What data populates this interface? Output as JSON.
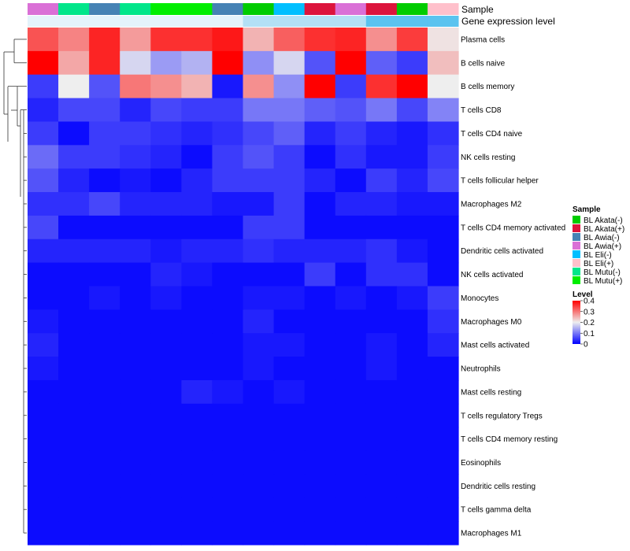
{
  "chart_data": {
    "type": "heatmap",
    "title": "",
    "annotation_labels": {
      "sample": "Sample",
      "gene_expression": "Gene expression level"
    },
    "column_samples": [
      "BL Awia(+)",
      "BL Mutu(-)",
      "BL Awia(-)",
      "BL Mutu(-)",
      "BL Mutu(+)",
      "BL Mutu(+)",
      "BL Awia(-)",
      "BL Akata(-)",
      "BL Eli(-)",
      "BL Akata(+)",
      "BL Awia(+)",
      "BL Akata(+)",
      "BL Akata(-)",
      "BL Eli(+)"
    ],
    "column_gene_expression": [
      0.3,
      0.3,
      0.3,
      0.3,
      0.3,
      0.3,
      0.3,
      0.5,
      0.5,
      0.5,
      0.5,
      0.8,
      0.8,
      0.8
    ],
    "rows": [
      "Plasma cells",
      "B cells naive",
      "B cells memory",
      "T cells CD8",
      "T cells CD4 naive",
      "NK cells resting",
      "T cells follicular helper",
      "Macrophages M2",
      "T cells CD4 memory activated",
      "Dendritic cells activated",
      "NK cells activated",
      "Monocytes",
      "Macrophages M0",
      "Mast cells activated",
      "Neutrophils",
      "Mast cells resting",
      "T cells regulatory  Tregs",
      "T cells CD4 memory resting",
      "Eosinophils",
      "Dendritic cells resting",
      "T cells gamma delta",
      "Macrophages M1"
    ],
    "values": [
      [
        0.33,
        0.29,
        0.37,
        0.27,
        0.36,
        0.36,
        0.38,
        0.25,
        0.32,
        0.36,
        0.37,
        0.28,
        0.35,
        0.21
      ],
      [
        0.42,
        0.26,
        0.37,
        0.18,
        0.13,
        0.15,
        0.42,
        0.12,
        0.18,
        0.07,
        0.42,
        0.08,
        0.05,
        0.24
      ],
      [
        0.05,
        0.2,
        0.07,
        0.3,
        0.28,
        0.25,
        0.02,
        0.28,
        0.12,
        0.42,
        0.05,
        0.36,
        0.42,
        0.2
      ],
      [
        0.03,
        0.06,
        0.06,
        0.03,
        0.06,
        0.05,
        0.05,
        0.1,
        0.1,
        0.08,
        0.07,
        0.1,
        0.06,
        0.11
      ],
      [
        0.05,
        0.01,
        0.05,
        0.05,
        0.04,
        0.03,
        0.04,
        0.06,
        0.08,
        0.03,
        0.05,
        0.03,
        0.02,
        0.04
      ],
      [
        0.09,
        0.05,
        0.05,
        0.04,
        0.03,
        0.01,
        0.05,
        0.07,
        0.05,
        0.01,
        0.04,
        0.02,
        0.02,
        0.05
      ],
      [
        0.07,
        0.03,
        0.01,
        0.02,
        0.01,
        0.03,
        0.05,
        0.05,
        0.05,
        0.03,
        0.01,
        0.05,
        0.03,
        0.06
      ],
      [
        0.04,
        0.04,
        0.06,
        0.03,
        0.03,
        0.03,
        0.02,
        0.02,
        0.05,
        0.01,
        0.03,
        0.03,
        0.02,
        0.02
      ],
      [
        0.06,
        0.01,
        0.01,
        0.01,
        0.01,
        0.01,
        0.01,
        0.05,
        0.05,
        0.01,
        0.01,
        0.01,
        0.01,
        0.01
      ],
      [
        0.03,
        0.03,
        0.03,
        0.03,
        0.02,
        0.03,
        0.03,
        0.04,
        0.03,
        0.03,
        0.03,
        0.04,
        0.02,
        0.01
      ],
      [
        0.01,
        0.01,
        0.01,
        0.01,
        0.03,
        0.02,
        0.01,
        0.01,
        0.01,
        0.05,
        0.01,
        0.04,
        0.04,
        0.01
      ],
      [
        0.01,
        0.01,
        0.02,
        0.01,
        0.02,
        0.01,
        0.01,
        0.02,
        0.02,
        0.01,
        0.02,
        0.01,
        0.02,
        0.05
      ],
      [
        0.02,
        0.01,
        0.01,
        0.01,
        0.01,
        0.01,
        0.01,
        0.03,
        0.01,
        0.01,
        0.01,
        0.01,
        0.01,
        0.04
      ],
      [
        0.03,
        0.01,
        0.01,
        0.01,
        0.01,
        0.01,
        0.01,
        0.02,
        0.02,
        0.01,
        0.01,
        0.02,
        0.01,
        0.03
      ],
      [
        0.02,
        0.01,
        0.01,
        0.01,
        0.01,
        0.01,
        0.01,
        0.02,
        0.01,
        0.01,
        0.01,
        0.02,
        0.01,
        0.01
      ],
      [
        0.01,
        0.01,
        0.01,
        0.01,
        0.01,
        0.03,
        0.02,
        0.01,
        0.02,
        0.01,
        0.01,
        0.01,
        0.01,
        0.01
      ],
      [
        0.01,
        0.01,
        0.01,
        0.01,
        0.01,
        0.01,
        0.01,
        0.01,
        0.01,
        0.01,
        0.01,
        0.01,
        0.01,
        0.01
      ],
      [
        0.01,
        0.01,
        0.01,
        0.01,
        0.01,
        0.01,
        0.01,
        0.01,
        0.01,
        0.01,
        0.01,
        0.01,
        0.01,
        0.01
      ],
      [
        0.01,
        0.01,
        0.01,
        0.01,
        0.01,
        0.01,
        0.01,
        0.01,
        0.01,
        0.01,
        0.01,
        0.01,
        0.01,
        0.01
      ],
      [
        0.01,
        0.01,
        0.01,
        0.01,
        0.01,
        0.01,
        0.01,
        0.01,
        0.01,
        0.01,
        0.01,
        0.01,
        0.01,
        0.01
      ],
      [
        0.01,
        0.01,
        0.01,
        0.01,
        0.01,
        0.01,
        0.01,
        0.01,
        0.01,
        0.01,
        0.01,
        0.01,
        0.01,
        0.01
      ],
      [
        0.01,
        0.01,
        0.01,
        0.01,
        0.01,
        0.01,
        0.01,
        0.01,
        0.01,
        0.01,
        0.01,
        0.01,
        0.01,
        0.01
      ]
    ],
    "color_scale": {
      "title": "Level",
      "min": 0,
      "max": 0.4,
      "ticks": [
        0.4,
        0.3,
        0.2,
        0.1,
        0
      ],
      "tick_labels": [
        "0.4",
        "0.3",
        "0.2",
        "0.1",
        "0"
      ],
      "low_color": "#0000ff",
      "mid_color": "#eeeeee",
      "high_color": "#ff0000"
    },
    "sample_legend": {
      "title": "Sample",
      "entries": [
        {
          "label": "BL Akata(-)",
          "color": "#00cc00"
        },
        {
          "label": "BL Akata(+)",
          "color": "#dc143c"
        },
        {
          "label": "BL Awia(-)",
          "color": "#4682b4"
        },
        {
          "label": "BL Awia(+)",
          "color": "#da70d6"
        },
        {
          "label": "BL Eli(-)",
          "color": "#00bfff"
        },
        {
          "label": "BL Eli(+)",
          "color": "#ffc0cb"
        },
        {
          "label": "BL Mutu(-)",
          "color": "#00e68a"
        },
        {
          "label": "BL Mutu(+)",
          "color": "#00ee00"
        }
      ]
    }
  }
}
